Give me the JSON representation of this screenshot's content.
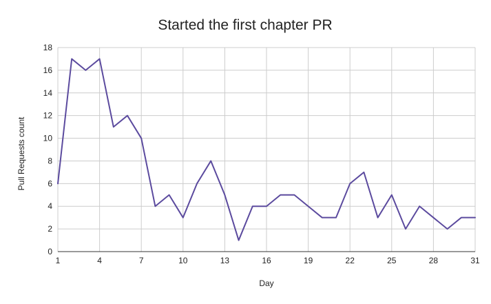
{
  "chart_data": {
    "type": "line",
    "title": "Started the first chapter PR",
    "xlabel": "Day",
    "ylabel": "Pull Requests count",
    "xlim": [
      1,
      31
    ],
    "ylim": [
      0,
      18
    ],
    "x_ticks": [
      1,
      4,
      7,
      10,
      13,
      16,
      19,
      22,
      25,
      28,
      31
    ],
    "y_ticks": [
      0,
      2,
      4,
      6,
      8,
      10,
      12,
      14,
      16,
      18
    ],
    "grid": true,
    "legend": "none",
    "line_color": "#5b4a9e",
    "x": [
      1,
      2,
      3,
      4,
      5,
      6,
      7,
      8,
      9,
      10,
      11,
      12,
      13,
      14,
      15,
      16,
      17,
      18,
      19,
      20,
      21,
      22,
      23,
      24,
      25,
      26,
      27,
      28,
      29,
      30,
      31
    ],
    "series": [
      {
        "values": [
          6,
          17,
          16,
          17,
          11,
          12,
          10,
          4,
          5,
          3,
          6,
          8,
          5,
          1,
          4,
          4,
          5,
          5,
          4,
          3,
          3,
          6,
          7,
          3,
          5,
          2,
          4,
          3,
          2,
          3,
          3
        ]
      }
    ]
  }
}
